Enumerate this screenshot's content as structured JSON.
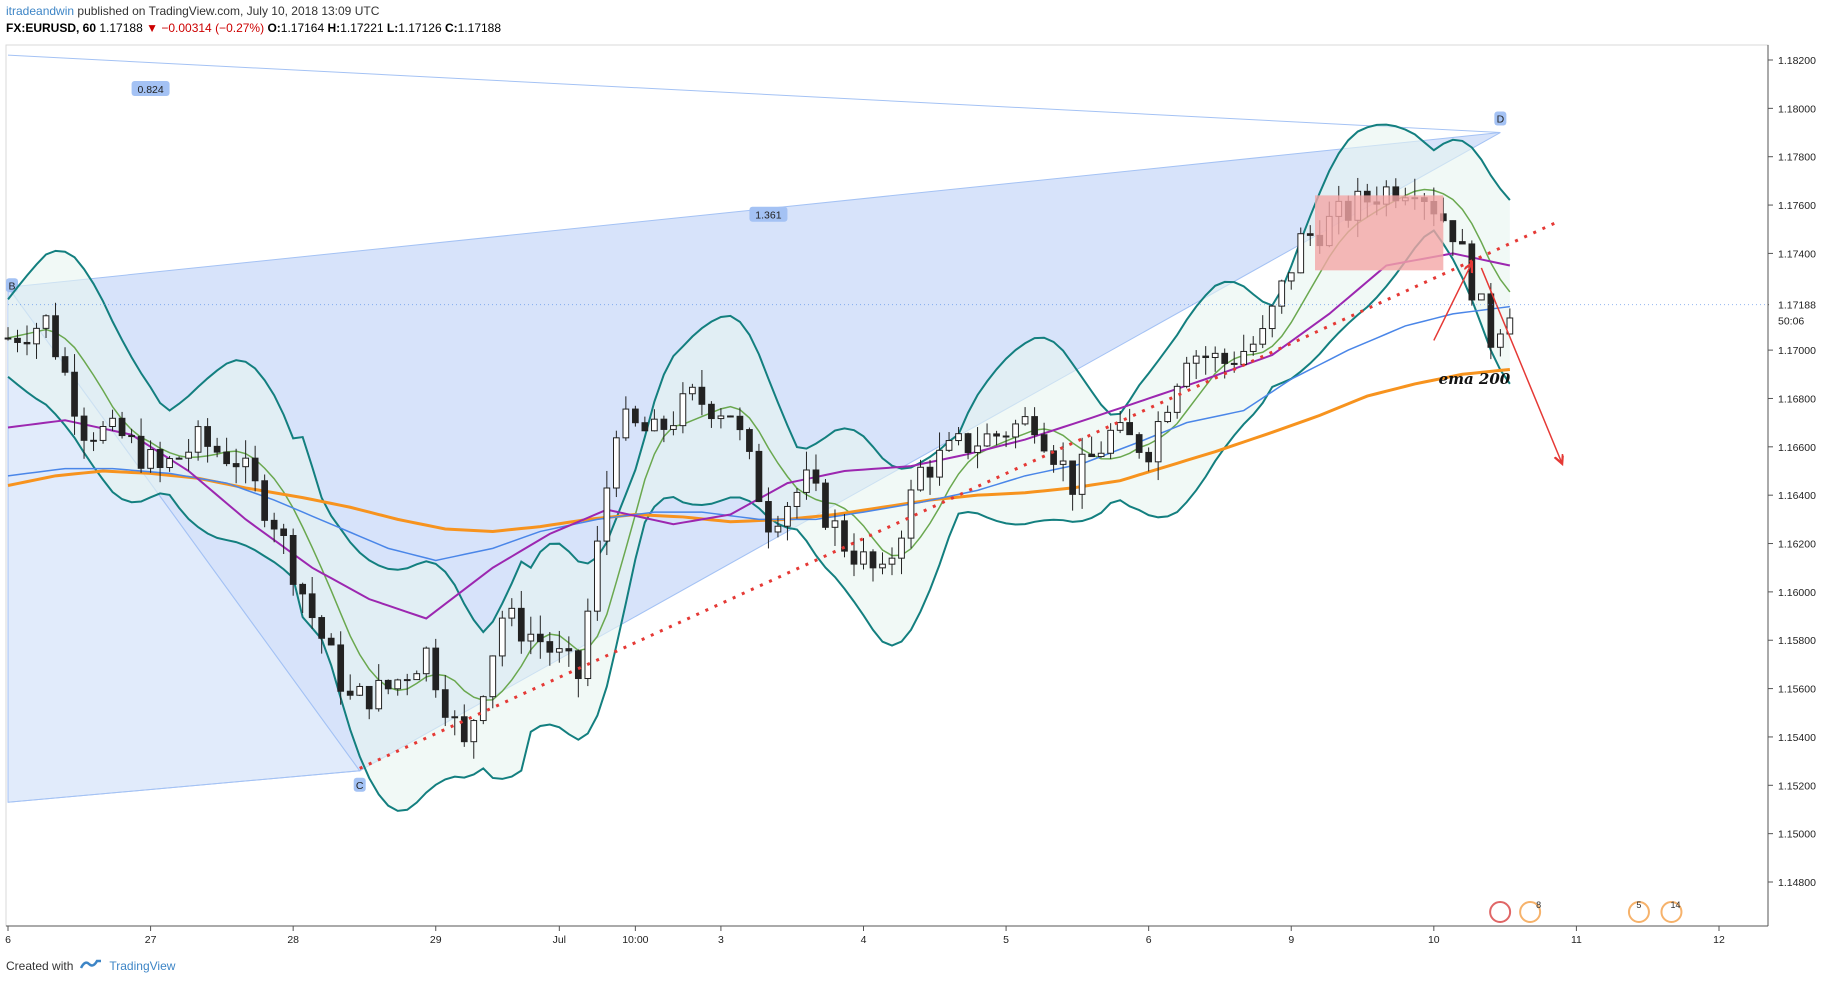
{
  "header": {
    "author": "itradeandwin",
    "published": "published on TradingView.com, July 10, 2018 13:09 UTC"
  },
  "symbol_line": {
    "symbol": "FX:EURUSD, 60",
    "last": "1.17188",
    "change": "−0.00314 (−0.27%)",
    "open_label": "O:",
    "open": "1.17164",
    "high_label": "H:",
    "high": "1.17221",
    "low_label": "L:",
    "low": "1.17126",
    "close_label": "C:",
    "close": "1.17188"
  },
  "footer": {
    "created_with": "Created with",
    "brand": "TradingView"
  },
  "chart_data": {
    "type": "line",
    "title": "",
    "ylim": [
      1.147,
      1.184
    ],
    "y_ticks": [
      "1.18200",
      "1.18000",
      "1.17800",
      "1.17600",
      "1.17400",
      "1.17188",
      "1.17000",
      "1.16800",
      "1.16600",
      "1.16400",
      "1.16200",
      "1.16000",
      "1.15800",
      "1.15600",
      "1.15400",
      "1.15200",
      "1.15000",
      "1.14800"
    ],
    "y_tick_values": [
      1.182,
      1.18,
      1.178,
      1.176,
      1.174,
      1.17188,
      1.17,
      1.168,
      1.166,
      1.164,
      1.162,
      1.16,
      1.158,
      1.156,
      1.154,
      1.152,
      1.15,
      1.148
    ],
    "countdown": "50:06",
    "x_ticks": [
      "6",
      "27",
      "28",
      "29",
      "Jul",
      "10:00",
      "3",
      "4",
      "5",
      "6",
      "9",
      "10",
      "11",
      "12"
    ],
    "x_tick_index": [
      0,
      15,
      30,
      45,
      58,
      66,
      75,
      90,
      105,
      120,
      135,
      150,
      165,
      180
    ],
    "n_bars": 182,
    "bar_index": [
      0,
      4,
      8,
      12,
      16,
      20,
      24,
      28,
      32,
      36,
      40,
      44,
      48,
      52,
      56,
      60,
      64,
      68,
      72,
      76,
      80,
      84,
      88,
      92,
      96,
      100,
      104,
      108,
      112,
      116,
      120,
      124,
      128,
      132,
      136,
      140,
      144,
      148,
      152,
      156,
      158
    ],
    "close": [
      1.1705,
      1.1712,
      1.1668,
      1.1664,
      1.165,
      1.1662,
      1.1655,
      1.163,
      1.159,
      1.1555,
      1.156,
      1.1575,
      1.1535,
      1.159,
      1.158,
      1.1565,
      1.167,
      1.1665,
      1.168,
      1.1675,
      1.163,
      1.1645,
      1.162,
      1.1605,
      1.165,
      1.166,
      1.1665,
      1.1672,
      1.1645,
      1.1665,
      1.166,
      1.17,
      1.1695,
      1.1705,
      1.1745,
      1.1755,
      1.1765,
      1.177,
      1.175,
      1.1705,
      1.1719
    ],
    "series": [
      {
        "name": "",
        "color": "#f7931e",
        "values": [
          1.1644,
          1.1648,
          1.165,
          1.1649,
          1.1647,
          1.1643,
          1.1639,
          1.1635,
          1.163,
          1.1626,
          1.1625,
          1.1627,
          1.163,
          1.1632,
          1.1631,
          1.1629,
          1.163,
          1.1632,
          1.1635,
          1.1638,
          1.164,
          1.1641,
          1.1643,
          1.1646,
          1.1652,
          1.1658,
          1.1666,
          1.1673,
          1.1681,
          1.1686,
          1.169,
          1.1692
        ]
      },
      {
        "name": "",
        "color": "#4a86e8",
        "values": [
          1.1648,
          1.1651,
          1.1651,
          1.1649,
          1.1645,
          1.1638,
          1.1628,
          1.1618,
          1.1613,
          1.1618,
          1.1625,
          1.163,
          1.1633,
          1.1633,
          1.163,
          1.163,
          1.1633,
          1.1637,
          1.1642,
          1.1648,
          1.1653,
          1.1662,
          1.167,
          1.1675,
          1.1688,
          1.17,
          1.171,
          1.1715,
          1.1718
        ]
      },
      {
        "name": "",
        "color": "#9c27b0",
        "values": [
          1.1668,
          1.1671,
          1.1665,
          1.165,
          1.163,
          1.161,
          1.1597,
          1.1589,
          1.161,
          1.1624,
          1.1634,
          1.1628,
          1.1632,
          1.1645,
          1.165,
          1.1652,
          1.1657,
          1.1663,
          1.1672,
          1.168,
          1.1688,
          1.1698,
          1.1715,
          1.1735,
          1.174,
          1.1735
        ]
      }
    ],
    "annotations": {
      "points": [
        "B",
        "C",
        "D"
      ],
      "ratios": [
        "0.824",
        "1.361"
      ],
      "text": "ema 200"
    },
    "flags": [
      "8",
      "5",
      "14"
    ]
  }
}
